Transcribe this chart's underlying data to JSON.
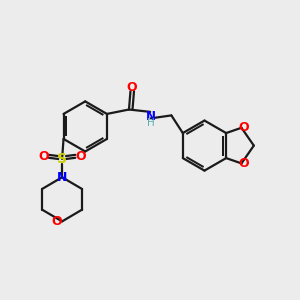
{
  "background_color": "#ececec",
  "bond_color": "#1a1a1a",
  "atom_colors": {
    "O": "#ff0000",
    "N": "#0000ff",
    "S": "#cccc00",
    "C": "#1a1a1a",
    "H": "#5aafaf"
  },
  "figsize": [
    3.0,
    3.0
  ],
  "dpi": 100,
  "lw": 1.6
}
